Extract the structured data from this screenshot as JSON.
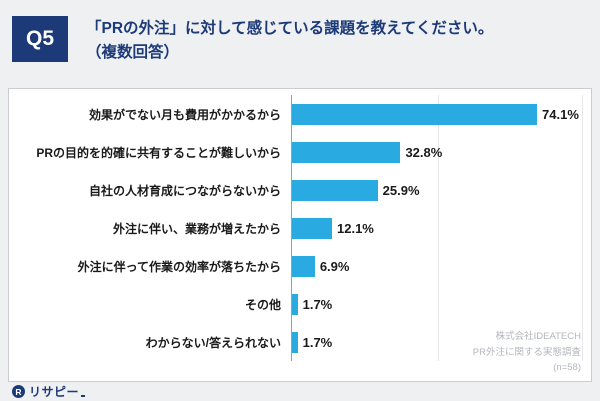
{
  "colors": {
    "navy": "#1d3a78",
    "bar": "#29abe2",
    "page_bg": "#eef0f2",
    "box_border": "#c9ccd1"
  },
  "header": {
    "question_number": "Q5",
    "title_line1": "「PRの外注」に対して感じている課題を教えてください。",
    "title_line2": "（複数回答）"
  },
  "chart_data": {
    "type": "bar",
    "orientation": "horizontal",
    "title": "「PRの外注」に対して感じている課題を教えてください。（複数回答）",
    "categories": [
      "効果がでない月も費用がかかるから",
      "PRの目的を的確に共有することが難しいから",
      "自社の人材育成につながらないから",
      "外注に伴い、業務が増えたから",
      "外注に伴って作業の効率が落ちたから",
      "その他",
      "わからない/答えられない"
    ],
    "values": [
      74.1,
      32.8,
      25.9,
      12.1,
      6.9,
      1.7,
      1.7
    ],
    "value_labels": [
      "74.1%",
      "32.8%",
      "25.9%",
      "12.1%",
      "6.9%",
      "1.7%",
      "1.7%"
    ],
    "xlim": [
      0,
      88
    ],
    "bar_color": "#29abe2",
    "grid": "vertical-light",
    "legend": false
  },
  "source": {
    "line1": "株式会社IDEATECH",
    "line2": "PR外注に関する実態調査",
    "line3": "(n=58)"
  },
  "logo": {
    "icon": "resapi-logo-icon",
    "icon_letter": "R",
    "text": "リサピー"
  }
}
